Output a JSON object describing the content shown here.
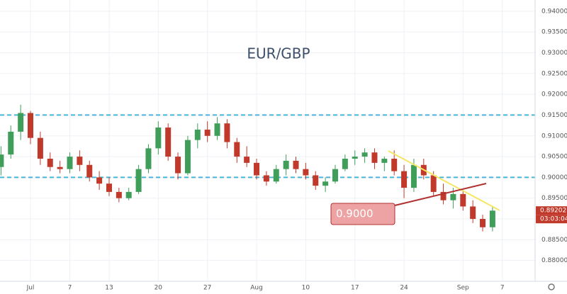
{
  "chart_data": {
    "type": "candlestick",
    "title": "EUR/GBP",
    "categories": [
      null,
      null,
      null,
      "Jul",
      null,
      null,
      null,
      "7",
      null,
      null,
      null,
      "13",
      null,
      null,
      null,
      null,
      "20",
      null,
      null,
      null,
      null,
      "27",
      null,
      null,
      null,
      null,
      "Aug",
      null,
      null,
      null,
      null,
      "10",
      null,
      null,
      null,
      null,
      "17",
      null,
      null,
      null,
      null,
      "24",
      null,
      null,
      null,
      null,
      null,
      "Sep",
      null,
      null,
      null,
      "7"
    ],
    "open": [
      0.9025,
      0.9055,
      0.911,
      0.9155,
      0.9095,
      0.9045,
      0.9025,
      0.902,
      0.905,
      0.903,
      0.9,
      0.8985,
      0.8965,
      0.895,
      0.8965,
      0.902,
      0.907,
      0.912,
      0.905,
      0.901,
      0.909,
      0.9115,
      0.91,
      0.913,
      0.9085,
      0.905,
      0.9035,
      0.9005,
      0.899,
      0.902,
      0.904,
      0.902,
      0.9005,
      0.898,
      0.899,
      0.902,
      0.9045,
      0.905,
      0.906,
      0.9035,
      0.9045,
      0.9015,
      0.8975,
      0.903,
      0.9005,
      0.8965,
      0.8945,
      0.896,
      0.893,
      0.89,
      0.888,
      null
    ],
    "high": [
      0.9075,
      0.9125,
      0.9175,
      0.916,
      0.911,
      0.906,
      0.904,
      0.906,
      0.9065,
      0.904,
      0.9015,
      0.9,
      0.8975,
      0.8975,
      0.903,
      0.908,
      0.9135,
      0.913,
      0.906,
      0.91,
      0.913,
      0.9135,
      0.9145,
      0.914,
      0.9095,
      0.9075,
      0.9045,
      0.9015,
      0.903,
      0.9055,
      0.905,
      0.9035,
      0.9015,
      0.9,
      0.903,
      0.9055,
      0.9065,
      0.907,
      0.907,
      0.905,
      0.9065,
      0.903,
      0.9045,
      0.9045,
      0.9015,
      0.8985,
      0.8975,
      0.897,
      0.8945,
      0.891,
      0.893,
      null
    ],
    "low": [
      0.9005,
      0.9045,
      0.909,
      0.908,
      0.903,
      0.9015,
      0.901,
      0.901,
      0.9015,
      0.899,
      0.897,
      0.8955,
      0.894,
      0.8945,
      0.896,
      0.901,
      0.9055,
      0.904,
      0.8995,
      0.9005,
      0.907,
      0.9085,
      0.909,
      0.907,
      0.9035,
      0.9025,
      0.8995,
      0.898,
      0.8985,
      0.9005,
      0.901,
      0.8995,
      0.897,
      0.8965,
      0.8985,
      0.9015,
      0.903,
      0.9035,
      0.902,
      0.9015,
      0.9005,
      0.895,
      0.8965,
      0.8995,
      0.8955,
      0.8935,
      0.8925,
      0.892,
      0.889,
      0.887,
      0.887,
      null
    ],
    "close": [
      0.9055,
      0.911,
      0.9155,
      0.9095,
      0.9045,
      0.9025,
      0.902,
      0.905,
      0.903,
      0.9,
      0.8985,
      0.8965,
      0.895,
      0.8965,
      0.902,
      0.907,
      0.912,
      0.905,
      0.901,
      0.909,
      0.9115,
      0.91,
      0.913,
      0.9085,
      0.905,
      0.9035,
      0.9005,
      0.899,
      0.902,
      0.904,
      0.902,
      0.9005,
      0.898,
      0.899,
      0.902,
      0.9045,
      0.905,
      0.906,
      0.9035,
      0.9045,
      0.9015,
      0.8975,
      0.903,
      0.9005,
      0.8965,
      0.8945,
      0.896,
      0.893,
      0.89,
      0.888,
      0.892,
      null
    ],
    "up_color": "#3f9e5a",
    "down_color": "#c0392b",
    "ylim": [
      0.875,
      0.9427
    ],
    "yticks": [
      {
        "value": 0.88,
        "label": "0.88000"
      },
      {
        "value": 0.885,
        "label": "0.88500"
      },
      {
        "value": 0.89,
        "label": "0.89000"
      },
      {
        "value": 0.895,
        "label": "0.89500"
      },
      {
        "value": 0.9,
        "label": "0.90000"
      },
      {
        "value": 0.905,
        "label": "0.90500"
      },
      {
        "value": 0.91,
        "label": "0.91000"
      },
      {
        "value": 0.915,
        "label": "0.91500"
      },
      {
        "value": 0.92,
        "label": "0.92000"
      },
      {
        "value": 0.925,
        "label": "0.92500"
      },
      {
        "value": 0.93,
        "label": "0.93000"
      },
      {
        "value": 0.935,
        "label": "0.93500"
      },
      {
        "value": 0.94,
        "label": "0.94000"
      }
    ],
    "grid": true,
    "hlines": [
      0.915,
      0.9
    ],
    "hline_color": "#4ab3d6",
    "last_price": {
      "value": 0.89202,
      "label": "0.89202"
    },
    "countdown": "03:03:04",
    "annotation": "0.9000"
  }
}
